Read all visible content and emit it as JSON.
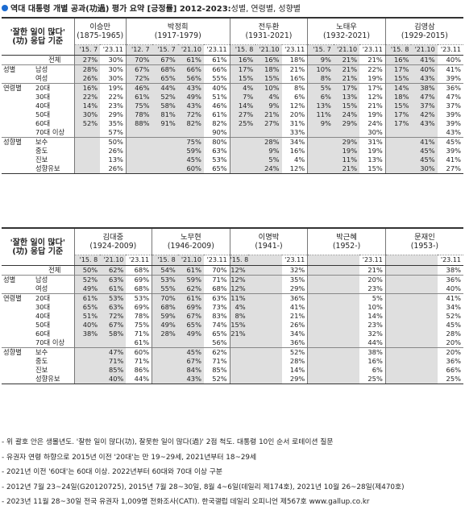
{
  "title": {
    "main": "역대 대통령 개별 공과(功過) 평가 요약 [긍정률] 2012-2023:",
    "rest": " 성별, 연령별, 성향별"
  },
  "header_label": [
    "'잘한 일이 많다'",
    "(功) 응답 기준"
  ],
  "table1": {
    "presidents": [
      {
        "name": "이승만",
        "years": "(1875-1965)"
      },
      {
        "name": "박정희",
        "years": "(1917-1979)"
      },
      {
        "name": "전두환",
        "years": "(1931-2021)"
      },
      {
        "name": "노태우",
        "years": "(1932-2021)"
      },
      {
        "name": "김영삼",
        "years": "(1929-2015)"
      }
    ],
    "survey_years": [
      [
        "'15. 7",
        "'23.11"
      ],
      [
        "'12. 7",
        "'15. 7",
        "'21.10",
        "'23.11"
      ],
      [
        "'15. 8",
        "'21.10",
        "'23.11"
      ],
      [
        "'15. 7",
        "'21.10",
        "'23.11"
      ],
      [
        "'15. 8",
        "'21.10",
        "'23.11"
      ]
    ],
    "rows": [
      {
        "cat": "",
        "sub": "전체",
        "v": [
          "27%",
          "30%",
          "70%",
          "67%",
          "61%",
          "61%",
          "16%",
          "16%",
          "18%",
          "9%",
          "21%",
          "21%",
          "16%",
          "41%",
          "40%"
        ]
      },
      {
        "cat": "성별",
        "sub": "남성",
        "v": [
          "28%",
          "30%",
          "67%",
          "68%",
          "66%",
          "66%",
          "17%",
          "18%",
          "21%",
          "10%",
          "21%",
          "22%",
          "17%",
          "40%",
          "41%"
        ]
      },
      {
        "cat": "",
        "sub": "여성",
        "v": [
          "26%",
          "30%",
          "72%",
          "65%",
          "56%",
          "55%",
          "15%",
          "15%",
          "16%",
          "8%",
          "21%",
          "19%",
          "15%",
          "43%",
          "39%"
        ]
      },
      {
        "cat": "연령별",
        "sub": "20대",
        "v": [
          "16%",
          "19%",
          "46%",
          "44%",
          "43%",
          "40%",
          "4%",
          "10%",
          "8%",
          "5%",
          "17%",
          "17%",
          "14%",
          "38%",
          "36%"
        ]
      },
      {
        "cat": "",
        "sub": "30대",
        "v": [
          "22%",
          "22%",
          "61%",
          "52%",
          "49%",
          "51%",
          "7%",
          "4%",
          "6%",
          "6%",
          "13%",
          "12%",
          "18%",
          "47%",
          "47%"
        ]
      },
      {
        "cat": "",
        "sub": "40대",
        "v": [
          "14%",
          "23%",
          "75%",
          "58%",
          "43%",
          "46%",
          "14%",
          "9%",
          "12%",
          "13%",
          "15%",
          "21%",
          "15%",
          "37%",
          "37%"
        ]
      },
      {
        "cat": "",
        "sub": "50대",
        "v": [
          "30%",
          "29%",
          "78%",
          "81%",
          "72%",
          "61%",
          "27%",
          "21%",
          "20%",
          "11%",
          "24%",
          "19%",
          "17%",
          "42%",
          "39%"
        ]
      },
      {
        "cat": "",
        "sub": "60대",
        "v": [
          "52%",
          "35%",
          "88%",
          "91%",
          "82%",
          "82%",
          "25%",
          "27%",
          "31%",
          "9%",
          "29%",
          "24%",
          "17%",
          "43%",
          "39%"
        ]
      },
      {
        "cat": "",
        "sub": "70대 이상",
        "v": [
          "",
          "57%",
          "",
          "",
          "",
          "90%",
          "",
          "",
          "33%",
          "",
          "",
          "30%",
          "",
          "",
          "43%"
        ]
      },
      {
        "cat": "성향별",
        "sub": "보수",
        "v": [
          "",
          "50%",
          "",
          "",
          "75%",
          "80%",
          "",
          "28%",
          "34%",
          "",
          "29%",
          "31%",
          "",
          "41%",
          "45%"
        ]
      },
      {
        "cat": "",
        "sub": "중도",
        "v": [
          "",
          "26%",
          "",
          "",
          "59%",
          "63%",
          "",
          "9%",
          "16%",
          "",
          "19%",
          "19%",
          "",
          "45%",
          "39%"
        ]
      },
      {
        "cat": "",
        "sub": "진보",
        "v": [
          "",
          "13%",
          "",
          "",
          "45%",
          "53%",
          "",
          "5%",
          "4%",
          "",
          "11%",
          "13%",
          "",
          "45%",
          "41%"
        ]
      },
      {
        "cat": "",
        "sub": "성향유보",
        "v": [
          "",
          "26%",
          "",
          "",
          "60%",
          "65%",
          "",
          "24%",
          "12%",
          "",
          "21%",
          "15%",
          "",
          "30%",
          "27%"
        ]
      }
    ]
  },
  "table2": {
    "presidents": [
      {
        "name": "김대중",
        "years": "(1924-2009)"
      },
      {
        "name": "노무현",
        "years": "(1946-2009)"
      },
      {
        "name": "이명박",
        "years": "(1941-)"
      },
      {
        "name": "박근혜",
        "years": "(1952-)"
      },
      {
        "name": "문재인",
        "years": "(1953-)"
      }
    ],
    "survey_years": [
      [
        "'15. 8",
        "'21.10",
        "'23.11"
      ],
      [
        "'15. 8",
        "'21.10",
        "'23.11"
      ],
      [
        "'15. 8",
        "",
        "'23.11"
      ],
      [
        "",
        "'23.11"
      ],
      [
        "",
        "'23.11"
      ]
    ],
    "rows": [
      {
        "cat": "",
        "sub": "전체",
        "v": [
          "50%",
          "62%",
          "68%",
          "54%",
          "61%",
          "70%",
          "12%",
          "",
          "32%",
          "",
          "21%",
          "",
          "38%"
        ]
      },
      {
        "cat": "성별",
        "sub": "남성",
        "v": [
          "52%",
          "63%",
          "69%",
          "53%",
          "59%",
          "71%",
          "12%",
          "",
          "35%",
          "",
          "20%",
          "",
          "36%"
        ]
      },
      {
        "cat": "",
        "sub": "여성",
        "v": [
          "49%",
          "61%",
          "68%",
          "55%",
          "62%",
          "68%",
          "12%",
          "",
          "29%",
          "",
          "23%",
          "",
          "40%"
        ]
      },
      {
        "cat": "연령별",
        "sub": "20대",
        "v": [
          "61%",
          "53%",
          "53%",
          "70%",
          "61%",
          "63%",
          "11%",
          "",
          "36%",
          "",
          "5%",
          "",
          "41%"
        ]
      },
      {
        "cat": "",
        "sub": "30대",
        "v": [
          "65%",
          "63%",
          "69%",
          "68%",
          "69%",
          "73%",
          "4%",
          "",
          "41%",
          "",
          "10%",
          "",
          "34%"
        ]
      },
      {
        "cat": "",
        "sub": "40대",
        "v": [
          "51%",
          "72%",
          "78%",
          "59%",
          "67%",
          "83%",
          "8%",
          "",
          "21%",
          "",
          "14%",
          "",
          "52%"
        ]
      },
      {
        "cat": "",
        "sub": "50대",
        "v": [
          "40%",
          "67%",
          "75%",
          "49%",
          "65%",
          "74%",
          "15%",
          "",
          "26%",
          "",
          "23%",
          "",
          "45%"
        ]
      },
      {
        "cat": "",
        "sub": "60대",
        "v": [
          "38%",
          "58%",
          "71%",
          "28%",
          "49%",
          "65%",
          "21%",
          "",
          "34%",
          "",
          "32%",
          "",
          "28%"
        ]
      },
      {
        "cat": "",
        "sub": "70대 이상",
        "v": [
          "",
          "",
          "61%",
          "",
          "",
          "56%",
          "",
          "",
          "36%",
          "",
          "44%",
          "",
          "20%"
        ]
      },
      {
        "cat": "성향별",
        "sub": "보수",
        "v": [
          "",
          "47%",
          "60%",
          "",
          "45%",
          "62%",
          "",
          "",
          "52%",
          "",
          "38%",
          "",
          "20%"
        ]
      },
      {
        "cat": "",
        "sub": "중도",
        "v": [
          "",
          "71%",
          "71%",
          "",
          "67%",
          "71%",
          "",
          "",
          "28%",
          "",
          "16%",
          "",
          "36%"
        ]
      },
      {
        "cat": "",
        "sub": "진보",
        "v": [
          "",
          "85%",
          "86%",
          "",
          "84%",
          "85%",
          "",
          "",
          "14%",
          "",
          "6%",
          "",
          "66%"
        ]
      },
      {
        "cat": "",
        "sub": "성향유보",
        "v": [
          "",
          "40%",
          "44%",
          "",
          "43%",
          "52%",
          "",
          "",
          "29%",
          "",
          "25%",
          "",
          "25%"
        ]
      }
    ]
  },
  "notes": [
    "- 위 괄호 안은 생몰년도. '잘한 일이 많다(功), 잘못한 일이 많다(過)' 2점 척도. 대통령 10인 순서 로테이션 질문",
    "- 유권자 연령 하향으로 2015년 이전 '20대'는 만 19~29세, 2021년부터 18~29세",
    "- 2021년 이전 '60대'는 60대 이상. 2022년부터 60대와 70대 이상 구분",
    "- 2012년 7월 23~24일(G20120725), 2015년 7월 28~30일, 8월 4~6일(데일리 제174호), 2021년 10월 26~28일(제470호)",
    "- 2023년 11월 28~30일 전국 유권자 1,009명 전화조사(CATI). 한국갤럽 데일리 오피니언 제567호 www.gallup.co.kr"
  ]
}
